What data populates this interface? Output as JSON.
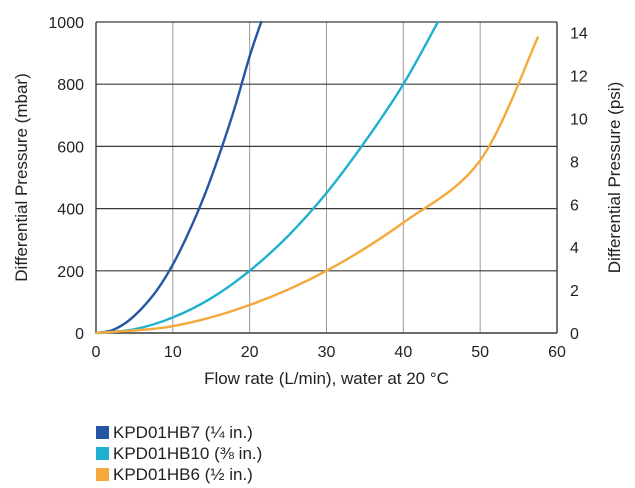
{
  "chart_data": {
    "type": "line",
    "title": "",
    "xlabel": "Flow rate (L/min), water at 20 °C",
    "ylabel": "Differential Pressure (mbar)",
    "y2label": "Differential Pressure (psi)",
    "xlim": [
      0,
      60
    ],
    "ylim": [
      0,
      1000
    ],
    "y2lim": [
      0,
      14.5
    ],
    "x_ticks": [
      "0",
      "10",
      "20",
      "30",
      "40",
      "50",
      "60"
    ],
    "y_ticks": [
      "0",
      "200",
      "400",
      "600",
      "800",
      "1000"
    ],
    "y2_ticks": [
      "0",
      "2",
      "4",
      "6",
      "8",
      "10",
      "12",
      "14"
    ],
    "grid": true,
    "legend_position": "bottom-left",
    "series": [
      {
        "name": "KPD01HB7 (¼ in.)",
        "color": "#2456a4",
        "x": [
          0,
          2,
          4,
          6,
          8,
          10,
          12,
          14,
          16,
          18,
          20,
          21.5
        ],
        "y": [
          0,
          8,
          35,
          80,
          140,
          220,
          320,
          435,
          570,
          720,
          890,
          1000
        ]
      },
      {
        "name": "KPD01HB10 (⅜ in.)",
        "color": "#1fb0cf",
        "x": [
          0,
          5,
          10,
          15,
          20,
          25,
          30,
          35,
          40,
          44.5
        ],
        "y": [
          0,
          12,
          50,
          112,
          200,
          312,
          450,
          615,
          800,
          1000
        ]
      },
      {
        "name": "KPD01HB6 (½ in.)",
        "color": "#f4a93c",
        "x": [
          0,
          10,
          20,
          30,
          40,
          50,
          57.5
        ],
        "y": [
          0,
          22,
          90,
          200,
          355,
          555,
          950
        ]
      }
    ]
  }
}
